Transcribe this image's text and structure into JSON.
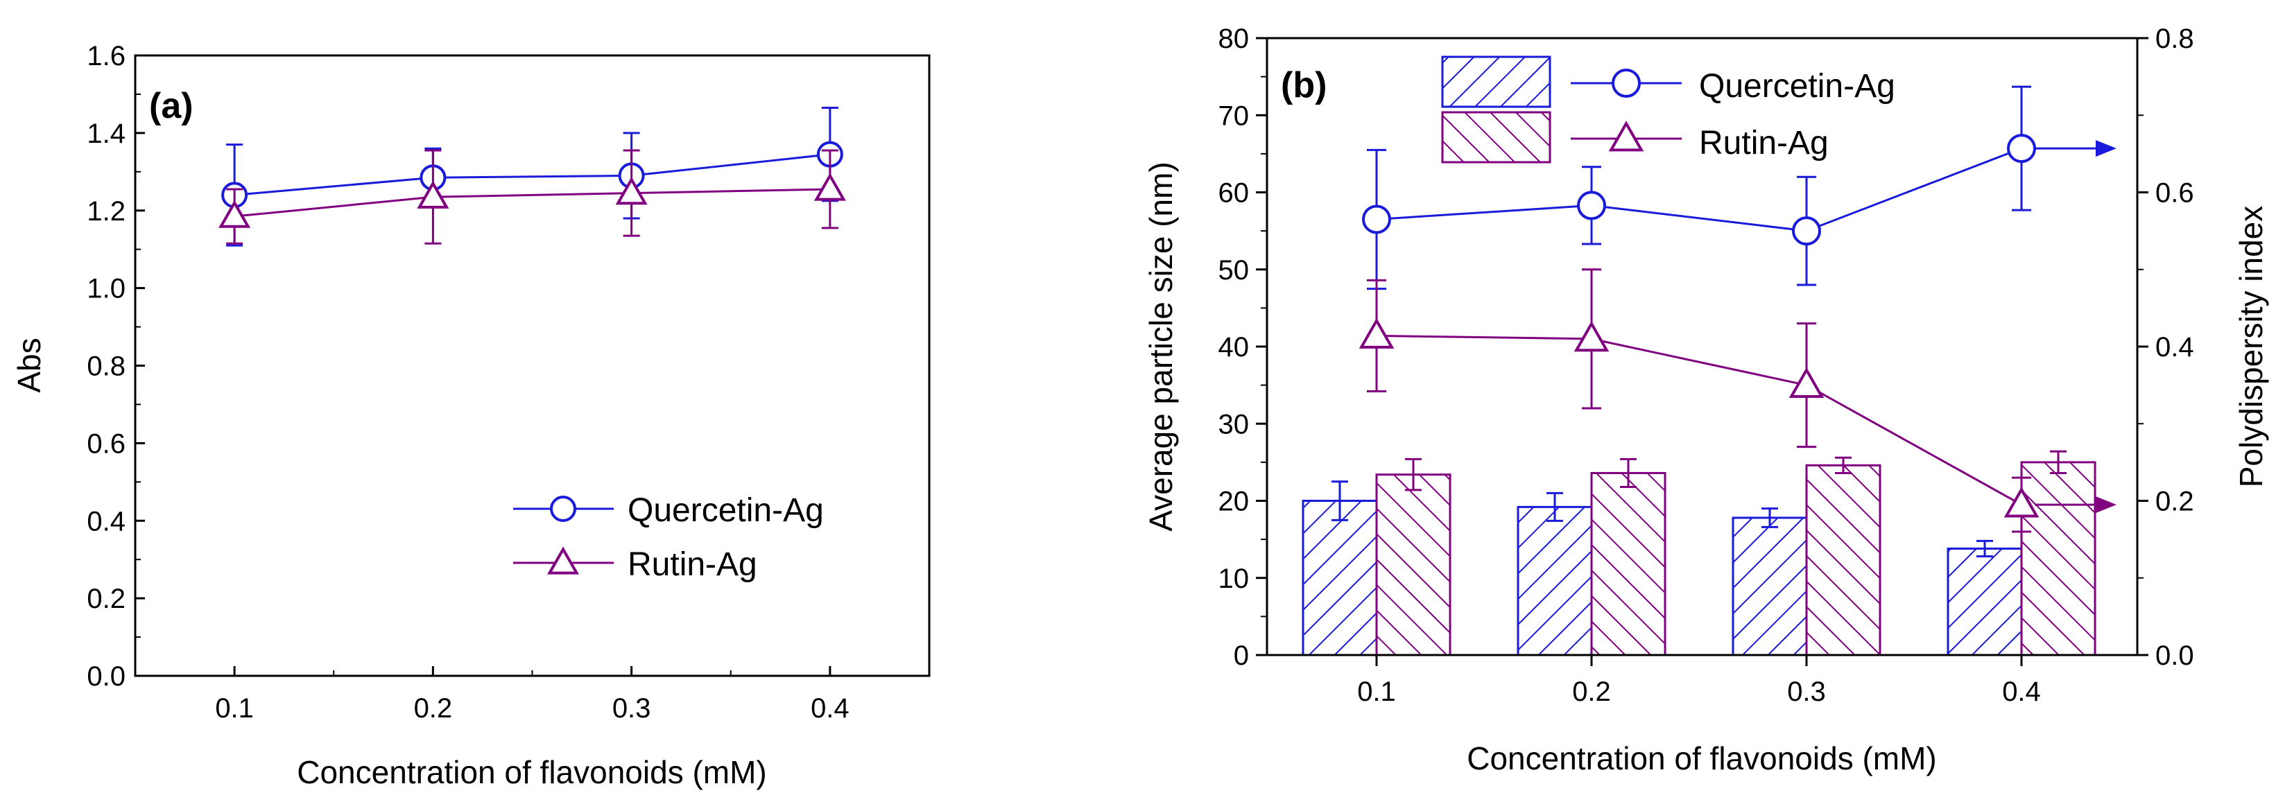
{
  "chart_data": [
    {
      "panel": "(a)",
      "type": "line",
      "xlabel": "Concentration of flavonoids (mM)",
      "ylabel": "Abs",
      "x": [
        0.1,
        0.2,
        0.3,
        0.4
      ],
      "x_ticks": [
        "0.1",
        "0.2",
        "0.3",
        "0.4"
      ],
      "xlim": [
        0.05,
        0.45
      ],
      "ylim": [
        0.0,
        1.6
      ],
      "y_ticks": [
        "0.0",
        "0.2",
        "0.4",
        "0.6",
        "0.8",
        "1.0",
        "1.2",
        "1.4",
        "1.6"
      ],
      "legend_position": "bottom-right",
      "series": [
        {
          "name": "Quercetin-Ag",
          "marker": "circle",
          "color": "#1a1adb",
          "values": [
            1.24,
            1.285,
            1.29,
            1.345
          ],
          "errors": [
            0.13,
            0.075,
            0.11,
            0.12
          ]
        },
        {
          "name": "Rutin-Ag",
          "marker": "triangle",
          "color": "#800080",
          "values": [
            1.185,
            1.235,
            1.245,
            1.255
          ],
          "errors": [
            0.07,
            0.12,
            0.11,
            0.1
          ]
        }
      ]
    },
    {
      "panel": "(b)",
      "type": "bar+line",
      "xlabel": "Concentration of flavonoids (mM)",
      "ylabel": "Average particle size (nm)",
      "ylabel_right": "Polydispersity index",
      "categories": [
        "0.1",
        "0.2",
        "0.3",
        "0.4"
      ],
      "ylim": [
        0,
        80
      ],
      "y_ticks": [
        "0",
        "10",
        "20",
        "30",
        "40",
        "50",
        "60",
        "70",
        "80"
      ],
      "ylim_right": [
        0.0,
        0.8
      ],
      "y_ticks_right": [
        "0.0",
        "0.2",
        "0.4",
        "0.6",
        "0.8"
      ],
      "legend_position": "top",
      "bars": [
        {
          "name": "Quercetin-Ag",
          "color": "#1a1adb",
          "hatch": "forward",
          "values": [
            20.0,
            19.2,
            17.8,
            13.8
          ],
          "errors": [
            2.5,
            1.8,
            1.2,
            1.0
          ]
        },
        {
          "name": "Rutin-Ag",
          "color": "#800080",
          "hatch": "backward",
          "values": [
            23.4,
            23.6,
            24.6,
            25.0
          ],
          "errors": [
            2.0,
            1.8,
            1.0,
            1.4
          ]
        }
      ],
      "lines": [
        {
          "name": "Quercetin-Ag",
          "marker": "circle",
          "color": "#1a1adb",
          "axis": "right",
          "values": [
            0.565,
            0.583,
            0.55,
            0.657
          ],
          "errors": [
            0.09,
            0.05,
            0.07,
            0.08
          ]
        },
        {
          "name": "Rutin-Ag",
          "marker": "triangle",
          "color": "#800080",
          "axis": "right",
          "values": [
            0.414,
            0.41,
            0.35,
            0.195
          ],
          "errors": [
            0.072,
            0.09,
            0.08,
            0.035
          ]
        }
      ]
    }
  ]
}
